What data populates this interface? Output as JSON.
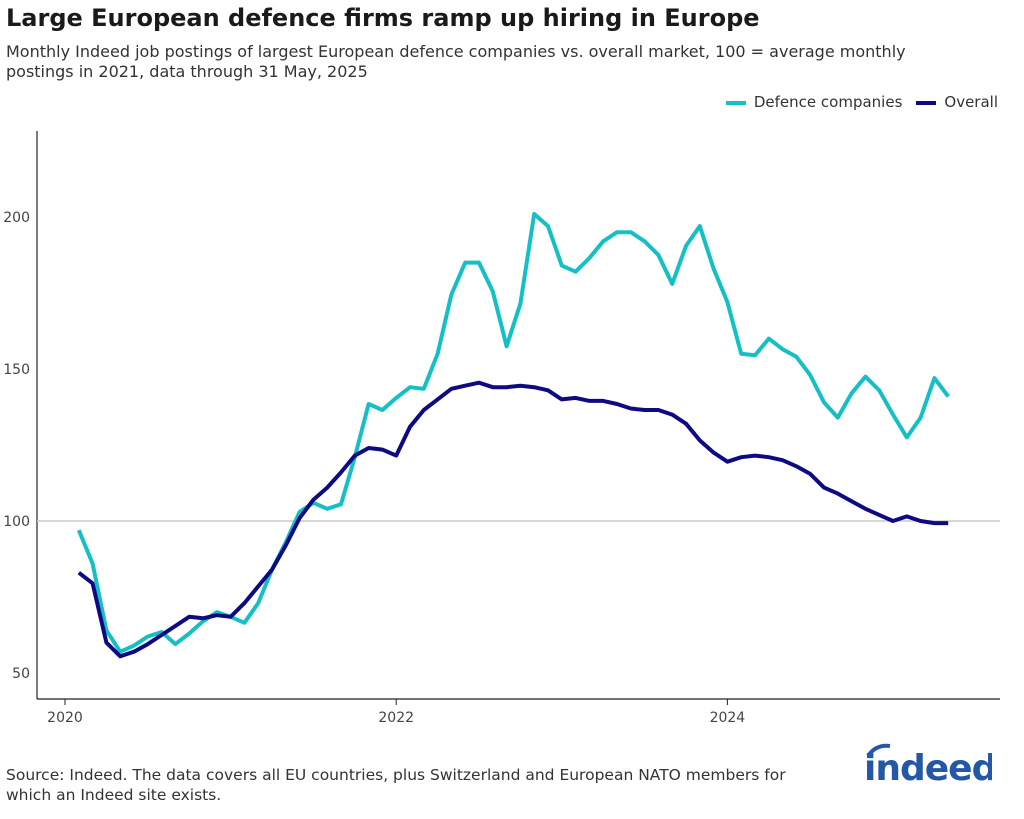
{
  "title": "Large European defence firms ramp up hiring in Europe",
  "subtitle": "Monthly Indeed job postings of largest European defence companies vs. overall market, 100 = average monthly postings in 2021, data through 31 May, 2025",
  "source": "Source: Indeed. The data covers all EU countries, plus Switzerland and European NATO members for which an Indeed site exists.",
  "logo_text": "indeed",
  "chart_data": {
    "type": "line",
    "title": "Large European defence firms ramp up hiring in Europe",
    "x_start": "2020-02",
    "x_end": "2025-05",
    "x_frequency": "monthly",
    "x_ticks": [
      "2020",
      "2022",
      "2024"
    ],
    "y_ticks": [
      50,
      100,
      150,
      200
    ],
    "ylim": [
      45,
      228
    ],
    "reference_line": 100,
    "grid": false,
    "legend_position": "top-right",
    "series": [
      {
        "name": "Defence companies",
        "color": "#14c0c5",
        "values": [
          97,
          86,
          64,
          57,
          59,
          62,
          63.5,
          59.5,
          63,
          67,
          70,
          68.5,
          66.5,
          73,
          84,
          93,
          103,
          106,
          104,
          105.5,
          121,
          138.5,
          136.5,
          140.5,
          144,
          143.5,
          155,
          174.5,
          185,
          185,
          175.5,
          157.5,
          171.5,
          201,
          197,
          184,
          182,
          186.5,
          192,
          195,
          195,
          192,
          187.5,
          178,
          190.5,
          197,
          183,
          172,
          155,
          154.5,
          160,
          156.5,
          154,
          148,
          139,
          134,
          142,
          147.5,
          143,
          135,
          127.5,
          134,
          147,
          141
        ]
      },
      {
        "name": "Overall",
        "color": "#0d0a82",
        "values": [
          83,
          79.5,
          60,
          55.5,
          57,
          59.5,
          62.5,
          65.5,
          68.5,
          68,
          69,
          68.5,
          73,
          78.5,
          84,
          92,
          101,
          107,
          111,
          116,
          121.5,
          124,
          123.5,
          121.5,
          131,
          136.5,
          140,
          143.5,
          144.5,
          145.5,
          144,
          144,
          144.5,
          144,
          143,
          140,
          140.5,
          139.5,
          139.5,
          138.5,
          137,
          136.5,
          136.5,
          135,
          132,
          126.5,
          122.5,
          119.5,
          121,
          121.5,
          121,
          120,
          118,
          115.5,
          111,
          109,
          106.5,
          104,
          102,
          100,
          101.5,
          100,
          99.3,
          99.3
        ]
      }
    ]
  }
}
